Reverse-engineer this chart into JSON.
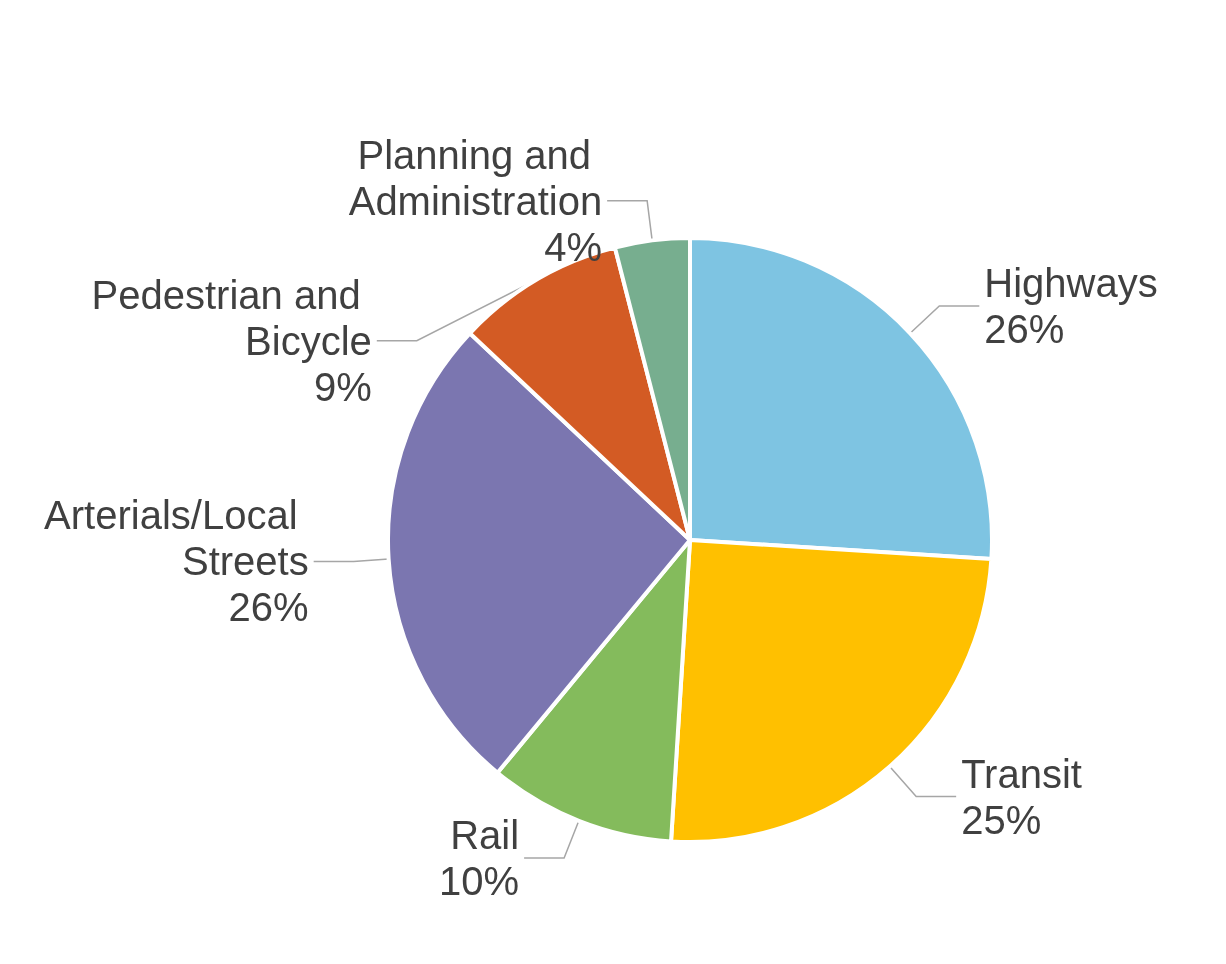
{
  "chart_data": {
    "type": "pie",
    "categories": [
      "Highways",
      "Transit",
      "Rail",
      "Arterials/Local Streets",
      "Pedestrian and Bicycle",
      "Planning and Administration"
    ],
    "values": [
      26,
      25,
      10,
      26,
      9,
      4
    ],
    "value_labels": [
      "26%",
      "25%",
      "10%",
      "26%",
      "9%",
      "4%"
    ],
    "colors": [
      "#7ec4e2",
      "#ffc000",
      "#84bb5c",
      "#7b76b0",
      "#d35b24",
      "#77ae8f"
    ],
    "legend": false
  }
}
